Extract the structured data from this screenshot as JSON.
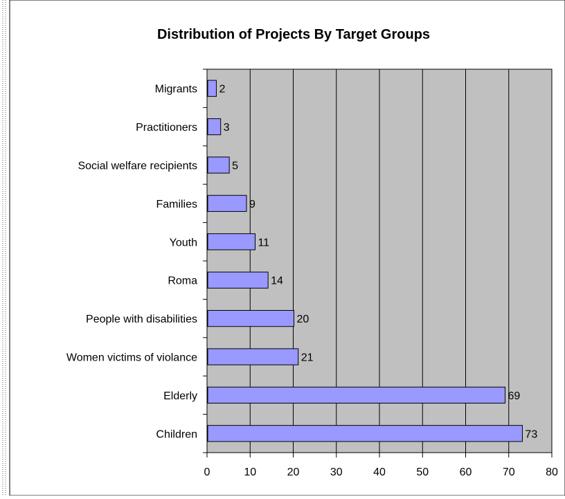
{
  "chart_data": {
    "type": "bar",
    "orientation": "horizontal",
    "title": "Distribution of Projects By Target Groups",
    "categories": [
      "Migrants",
      "Practitioners",
      "Social welfare recipients",
      "Families",
      "Youth",
      "Roma",
      "People with disabilities",
      "Women victims of violance",
      "Elderly",
      "Children"
    ],
    "values": [
      2,
      3,
      5,
      9,
      11,
      14,
      20,
      21,
      69,
      73
    ],
    "data_labels": [
      "2",
      "3",
      "5",
      "9",
      "11",
      "14",
      "20",
      "21",
      "69",
      "73"
    ],
    "xlim": [
      0,
      80
    ],
    "x_ticks": [
      0,
      10,
      20,
      30,
      40,
      50,
      60,
      70,
      80
    ],
    "x_tick_labels": [
      "0",
      "10",
      "20",
      "30",
      "40",
      "50",
      "60",
      "70",
      "80"
    ],
    "grid": "vertical",
    "legend": "none",
    "colors": {
      "bar_fill": "#9999ff",
      "bar_stroke": "#000000",
      "plot_background": "#c0c0c0",
      "grid": "#000000",
      "chart_background": "#ffffff",
      "chart_border": "#000000"
    }
  }
}
